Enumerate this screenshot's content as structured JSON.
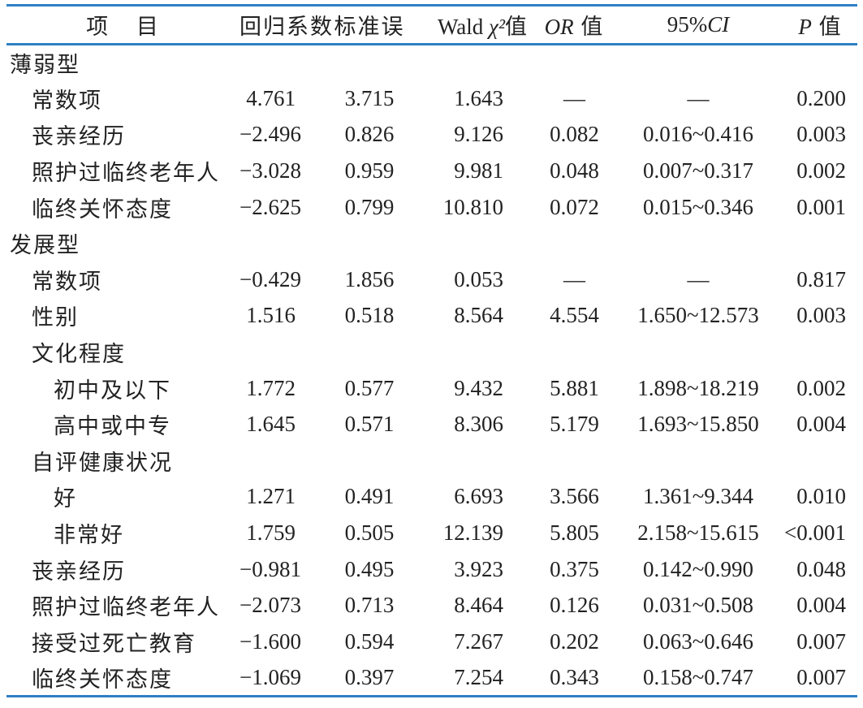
{
  "accent_rule_color": "#2e80c4",
  "table": {
    "columns": [
      {
        "key": "item",
        "pre": "项 目"
      },
      {
        "key": "coef",
        "pre": "回归系数"
      },
      {
        "key": "se",
        "pre": "标准误"
      },
      {
        "key": "wald",
        "pre": "Wald ",
        "it": "χ²",
        "post": "值"
      },
      {
        "key": "or",
        "it": "OR",
        "post": " 值"
      },
      {
        "key": "ci",
        "pre": "95%",
        "it": "CI"
      },
      {
        "key": "p",
        "it": "P",
        "post": " 值"
      }
    ],
    "rows": [
      {
        "label": "薄弱型",
        "indent": 0,
        "values": [
          "",
          "",
          "",
          "",
          "",
          ""
        ]
      },
      {
        "label": "常数项",
        "indent": 1,
        "values": [
          "4.761",
          "3.715",
          "1.643",
          "—",
          "—",
          "0.200"
        ]
      },
      {
        "label": "丧亲经历",
        "indent": 1,
        "values": [
          "−2.496",
          "0.826",
          "9.126",
          "0.082",
          "0.016~0.416",
          "0.003"
        ]
      },
      {
        "label": "照护过临终老年人",
        "indent": 1,
        "values": [
          "−3.028",
          "0.959",
          "9.981",
          "0.048",
          "0.007~0.317",
          "0.002"
        ]
      },
      {
        "label": "临终关怀态度",
        "indent": 1,
        "values": [
          "−2.625",
          "0.799",
          "10.810",
          "0.072",
          "0.015~0.346",
          "0.001"
        ]
      },
      {
        "label": "发展型",
        "indent": 0,
        "values": [
          "",
          "",
          "",
          "",
          "",
          ""
        ]
      },
      {
        "label": "常数项",
        "indent": 1,
        "values": [
          "−0.429",
          "1.856",
          "0.053",
          "—",
          "—",
          "0.817"
        ]
      },
      {
        "label": "性别",
        "indent": 1,
        "values": [
          "1.516",
          "0.518",
          "8.564",
          "4.554",
          "1.650~12.573",
          "0.003"
        ]
      },
      {
        "label": "文化程度",
        "indent": 1,
        "values": [
          "",
          "",
          "",
          "",
          "",
          ""
        ]
      },
      {
        "label": "初中及以下",
        "indent": 2,
        "values": [
          "1.772",
          "0.577",
          "9.432",
          "5.881",
          "1.898~18.219",
          "0.002"
        ]
      },
      {
        "label": "高中或中专",
        "indent": 2,
        "values": [
          "1.645",
          "0.571",
          "8.306",
          "5.179",
          "1.693~15.850",
          "0.004"
        ]
      },
      {
        "label": "自评健康状况",
        "indent": 1,
        "values": [
          "",
          "",
          "",
          "",
          "",
          ""
        ]
      },
      {
        "label": "好",
        "indent": 2,
        "values": [
          "1.271",
          "0.491",
          "6.693",
          "3.566",
          "1.361~9.344",
          "0.010"
        ]
      },
      {
        "label": "非常好",
        "indent": 2,
        "values": [
          "1.759",
          "0.505",
          "12.139",
          "5.805",
          "2.158~15.615",
          "<0.001"
        ]
      },
      {
        "label": "丧亲经历",
        "indent": 1,
        "values": [
          "−0.981",
          "0.495",
          "3.923",
          "0.375",
          "0.142~0.990",
          "0.048"
        ]
      },
      {
        "label": "照护过临终老年人",
        "indent": 1,
        "values": [
          "−2.073",
          "0.713",
          "8.464",
          "0.126",
          "0.031~0.508",
          "0.004"
        ]
      },
      {
        "label": "接受过死亡教育",
        "indent": 1,
        "values": [
          "−1.600",
          "0.594",
          "7.267",
          "0.202",
          "0.063~0.646",
          "0.007"
        ]
      },
      {
        "label": "临终关怀态度",
        "indent": 1,
        "values": [
          "−1.069",
          "0.397",
          "7.254",
          "0.343",
          "0.158~0.747",
          "0.007"
        ]
      }
    ]
  }
}
